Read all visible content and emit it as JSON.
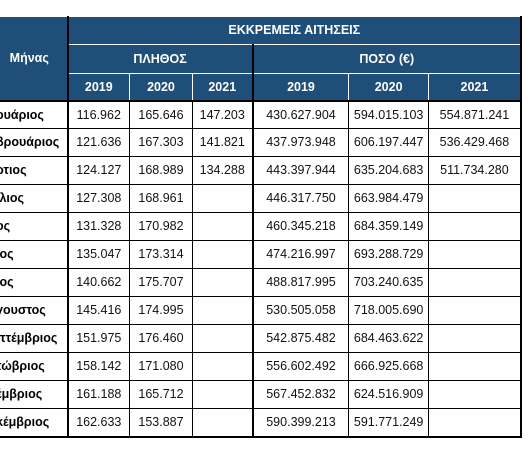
{
  "header": {
    "month_col": "Μήνας",
    "group_title": "ΕΚΚΡΕΜΕΙΣ ΑΙΤΗΣΕΙΣ",
    "count_title": "ΠΛΗΘΟΣ",
    "amount_title": "ΠΟΣΟ (€)",
    "years": [
      "2019",
      "2020",
      "2021"
    ]
  },
  "rows": [
    {
      "month": "ουάριος",
      "c2019": "116.962",
      "c2020": "165.646",
      "c2021": "147.203",
      "a2019": "430.627.904",
      "a2020": "594.015.103",
      "a2021": "554.871.241"
    },
    {
      "month": "βρουάριος",
      "c2019": "121.636",
      "c2020": "167.303",
      "c2021": "141.821",
      "a2019": "437.973.948",
      "a2020": "606.197.447",
      "a2021": "536.429.468"
    },
    {
      "month": "ρτιος",
      "c2019": "124.127",
      "c2020": "168.989",
      "c2021": "134.288",
      "a2019": "443.397.944",
      "a2020": "635.204.683",
      "a2021": "511.734.280"
    },
    {
      "month": "ίλιος",
      "c2019": "127.308",
      "c2020": "168.961",
      "c2021": "",
      "a2019": "446.317.750",
      "a2020": "663.984.479",
      "a2021": ""
    },
    {
      "month": "ος",
      "c2019": "131.328",
      "c2020": "170.982",
      "c2021": "",
      "a2019": "460.345.218",
      "a2020": "684.359.149",
      "a2021": ""
    },
    {
      "month": "ιος",
      "c2019": "135.047",
      "c2020": "173.314",
      "c2021": "",
      "a2019": "474.216.997",
      "a2020": "693.288.729",
      "a2021": ""
    },
    {
      "month": "ιος",
      "c2019": "140.662",
      "c2020": "175.707",
      "c2021": "",
      "a2019": "488.817.995",
      "a2020": "703.240.635",
      "a2021": ""
    },
    {
      "month": "γουστος",
      "c2019": "145.416",
      "c2020": "174.995",
      "c2021": "",
      "a2019": "530.505.058",
      "a2020": "718.005.690",
      "a2021": ""
    },
    {
      "month": "πτέμβριος",
      "c2019": "151.975",
      "c2020": "176.460",
      "c2021": "",
      "a2019": "542.875.482",
      "a2020": "684.463.622",
      "a2021": ""
    },
    {
      "month": "τώβριος",
      "c2019": "158.142",
      "c2020": "171.080",
      "c2021": "",
      "a2019": "556.602.492",
      "a2020": "666.925.668",
      "a2021": ""
    },
    {
      "month": "έμβριος",
      "c2019": "161.188",
      "c2020": "165.712",
      "c2021": "",
      "a2019": "567.452.832",
      "a2020": "624.516.909",
      "a2021": ""
    },
    {
      "month": "κέμβριος",
      "c2019": "162.633",
      "c2020": "153.887",
      "c2021": "",
      "a2019": "590.399.213",
      "a2020": "591.771.249",
      "a2021": ""
    }
  ],
  "colors": {
    "header_bg": "#1f4e79",
    "header_text": "#ffffff",
    "grid": "#000000"
  }
}
